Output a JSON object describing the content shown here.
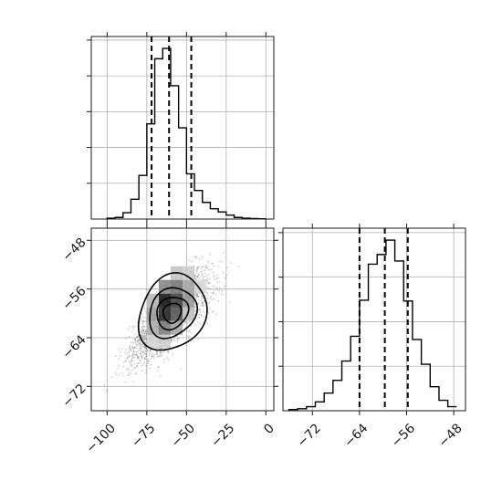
{
  "chart_data": [
    {
      "panel": "marginal-x",
      "type": "histogram",
      "xlim": [
        -110,
        5
      ],
      "bins": {
        "edges": [
          -100,
          -95,
          -90,
          -85,
          -80,
          -75,
          -70,
          -65,
          -60,
          -55,
          -50,
          -45,
          -40,
          -35,
          -30,
          -25,
          -20,
          -15,
          -10,
          -5,
          0
        ],
        "counts": [
          1,
          2,
          8,
          25,
          55,
          120,
          202,
          215,
          168,
          115,
          57,
          36,
          21,
          13,
          9,
          5,
          2,
          1,
          0.6,
          0.3
        ]
      },
      "quantiles": [
        -72,
        -61,
        -47
      ],
      "xticks": [
        -100,
        -75,
        -50,
        -25,
        0
      ],
      "ytick_count": 5
    },
    {
      "panel": "marginal-y",
      "type": "histogram",
      "xlim": [
        -77,
        -46
      ],
      "bins": {
        "edges": [
          -76,
          -74.5,
          -73,
          -71.5,
          -70,
          -68.5,
          -67,
          -65.5,
          -64,
          -62.5,
          -61,
          -59.5,
          -58,
          -56.5,
          -55,
          -53.5,
          -52,
          -50.5,
          -49,
          -47.5
        ],
        "counts": [
          1.5,
          2.5,
          5,
          11,
          22,
          38,
          62,
          93,
          138,
          183,
          195,
          213,
          187,
          137,
          89,
          58,
          30,
          13,
          5
        ]
      },
      "quantiles": [
        -64,
        -59.7,
        -55.8
      ],
      "xticks": [
        -72,
        -64,
        -56,
        -48
      ],
      "ytick_count": 4
    },
    {
      "panel": "joint",
      "type": "scatter-density",
      "xlim": [
        -110,
        5
      ],
      "ylim": [
        -76,
        -46
      ],
      "center": [
        -62,
        -60.5
      ],
      "xticks": [
        -100,
        -75,
        -50,
        -25,
        0
      ],
      "yticks": [
        -48,
        -56,
        -64,
        -72
      ],
      "contour_levels": 4
    }
  ]
}
